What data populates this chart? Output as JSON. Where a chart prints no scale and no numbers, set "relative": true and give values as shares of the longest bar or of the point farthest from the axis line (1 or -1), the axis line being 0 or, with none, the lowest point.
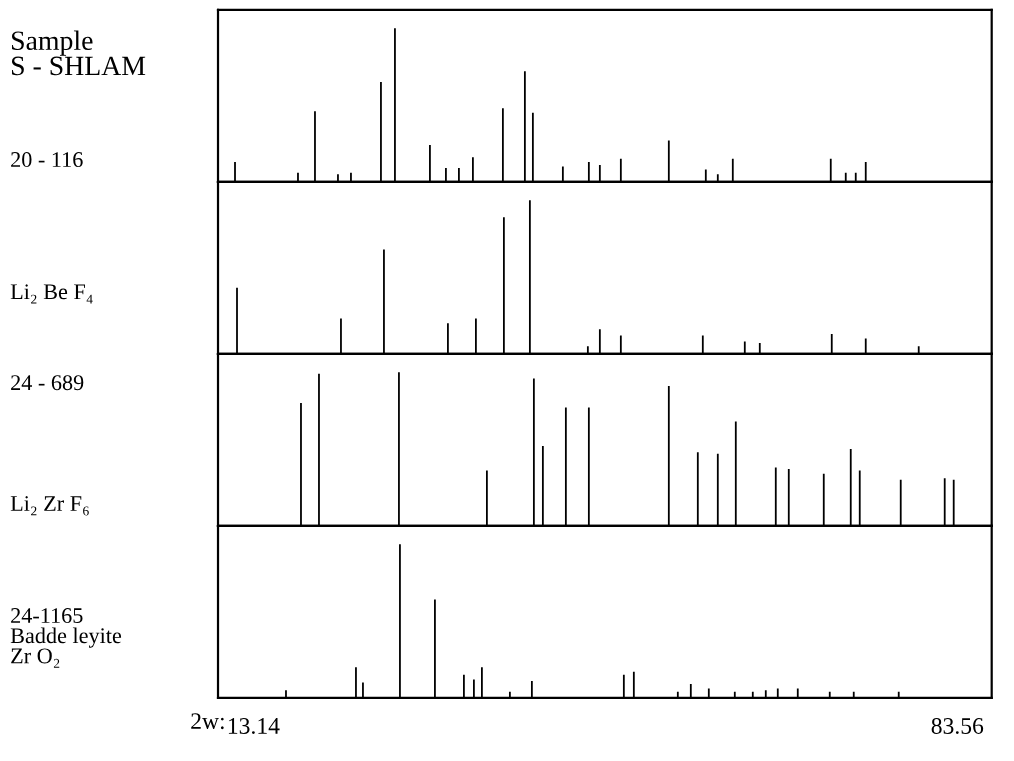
{
  "chart_data": [
    {
      "type": "bar",
      "relative": true,
      "color": "#000000",
      "annotations": [
        "Sample\nS - SHLAM",
        "20 - 116"
      ],
      "xlim": [
        9.6,
        87.0
      ],
      "tick_labels": false,
      "x": [
        11.3,
        17.6,
        19.3,
        21.6,
        22.9,
        25.9,
        27.3,
        30.8,
        32.4,
        33.7,
        35.1,
        38.1,
        40.3,
        41.1,
        44.1,
        46.7,
        47.8,
        49.9,
        54.7,
        58.4,
        59.6,
        61.1,
        70.9,
        72.4,
        73.4,
        74.4
      ],
      "values": [
        0.13,
        0.06,
        0.46,
        0.05,
        0.06,
        0.65,
        1,
        0.24,
        0.09,
        0.09,
        0.16,
        0.48,
        0.72,
        0.45,
        0.1,
        0.13,
        0.11,
        0.15,
        0.27,
        0.08,
        0.05,
        0.15,
        0.15,
        0.06,
        0.06,
        0.13
      ]
    },
    {
      "type": "bar",
      "relative": true,
      "color": "#000000",
      "annotations": [
        "Li₂ Be F₄"
      ],
      "xlim": [
        9.6,
        87.0
      ],
      "tick_labels": false,
      "x": [
        11.5,
        21.9,
        26.2,
        32.6,
        35.4,
        38.2,
        40.8,
        46.6,
        47.8,
        49.9,
        58.1,
        62.3,
        63.8,
        71.0,
        74.4,
        79.7
      ],
      "values": [
        0.43,
        0.23,
        0.68,
        0.2,
        0.23,
        0.89,
        1,
        0.05,
        0.16,
        0.12,
        0.12,
        0.08,
        0.07,
        0.13,
        0.1,
        0.05
      ]
    },
    {
      "type": "bar",
      "relative": true,
      "color": "#000000",
      "annotations": [
        "24 - 689",
        "Li₂ Zr F₆"
      ],
      "xlim": [
        9.6,
        87.0
      ],
      "tick_labels": false,
      "x": [
        17.9,
        19.7,
        27.7,
        36.5,
        41.2,
        42.1,
        44.4,
        46.7,
        54.7,
        57.6,
        59.6,
        61.4,
        65.4,
        66.7,
        70.2,
        72.9,
        73.8,
        77.9,
        82.3,
        83.2
      ],
      "values": [
        0.8,
        0.99,
        1,
        0.36,
        0.96,
        0.52,
        0.77,
        0.77,
        0.91,
        0.48,
        0.47,
        0.68,
        0.38,
        0.37,
        0.34,
        0.5,
        0.36,
        0.3,
        0.31,
        0.3
      ]
    },
    {
      "type": "bar",
      "relative": true,
      "color": "#000000",
      "annotations": [
        "24-1165\nBadde leyite\nZr O₂"
      ],
      "xlim": [
        9.6,
        87.0
      ],
      "xticks": [
        13.14,
        83.56
      ],
      "xlabel": "2w:",
      "tick_labels": "x",
      "x": [
        16.4,
        23.4,
        24.1,
        27.8,
        31.3,
        34.2,
        35.2,
        36.0,
        38.8,
        41.0,
        50.2,
        51.2,
        55.6,
        56.9,
        58.7,
        61.3,
        63.1,
        64.4,
        65.6,
        67.6,
        70.8,
        73.2,
        77.7
      ],
      "values": [
        0.05,
        0.2,
        0.1,
        1,
        0.64,
        0.15,
        0.12,
        0.2,
        0.04,
        0.11,
        0.15,
        0.17,
        0.04,
        0.09,
        0.06,
        0.04,
        0.04,
        0.05,
        0.06,
        0.06,
        0.04,
        0.04,
        0.04
      ]
    }
  ]
}
